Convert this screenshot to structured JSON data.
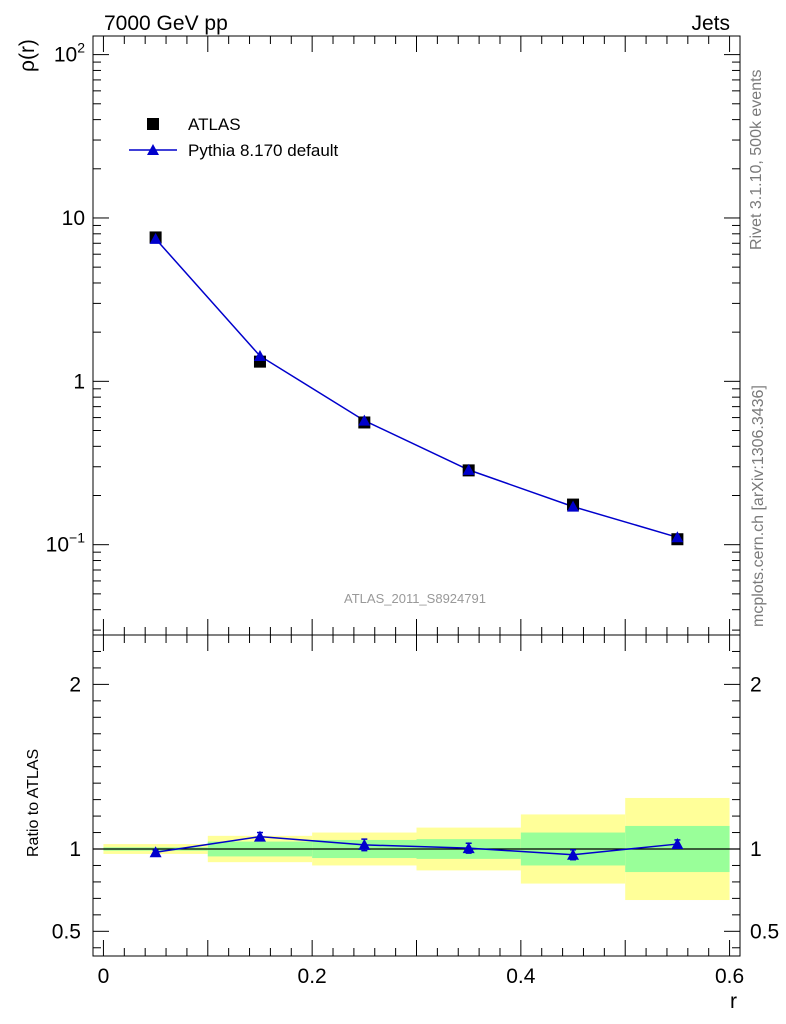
{
  "header": {
    "left": "7000 GeV pp",
    "right": "Jets"
  },
  "side_labels": {
    "rivet": "Rivet 3.1.10,  500k events",
    "source": "mcplots.cern.ch [arXiv:1306.3436]"
  },
  "analysis_tag": "ATLAS_2011_S8924791",
  "chart_data": [
    {
      "type": "scatter",
      "ylabel": "ρ(r)",
      "xlabel": "",
      "yscale": "log",
      "xlim": [
        -0.01,
        0.61
      ],
      "ylim": [
        0.028,
        130
      ],
      "ytick_labels": [
        {
          "value": 0.1,
          "label": "10",
          "sup": "−1"
        },
        {
          "value": 1,
          "label": "1",
          "sup": ""
        },
        {
          "value": 10,
          "label": "10",
          "sup": ""
        },
        {
          "value": 100,
          "label": "10",
          "sup": "2"
        }
      ],
      "legend_position": "top-left",
      "series": [
        {
          "name": "ATLAS",
          "style": "square-marker",
          "color": "#000000",
          "x": [
            0.05,
            0.15,
            0.25,
            0.35,
            0.45,
            0.55
          ],
          "y": [
            7.6,
            1.32,
            0.56,
            0.285,
            0.176,
            0.108
          ]
        },
        {
          "name": "Pythia 8.170 default",
          "style": "line-triangle",
          "color": "#0000cc",
          "x": [
            0.05,
            0.15,
            0.25,
            0.35,
            0.45,
            0.55
          ],
          "y": [
            7.45,
            1.43,
            0.575,
            0.287,
            0.171,
            0.111
          ]
        }
      ]
    },
    {
      "type": "line",
      "ylabel": "Ratio to ATLAS",
      "xlabel": "r",
      "xlim": [
        -0.01,
        0.61
      ],
      "ylim": [
        0.35,
        2.3
      ],
      "x_ticks": [
        0,
        0.2,
        0.4,
        0.6
      ],
      "x_tick_labels": [
        "0",
        "0.2",
        "0.4",
        "0.6"
      ],
      "y_ticks": [
        0.5,
        1,
        2
      ],
      "y_tick_labels": [
        "0.5",
        "1",
        "2"
      ],
      "reference_line": 1,
      "bands": {
        "bin_edges": [
          0,
          0.1,
          0.2,
          0.3,
          0.4,
          0.5,
          0.6
        ],
        "stat_color": "#99ff99",
        "total_color": "#ffff99",
        "stat": [
          [
            0.99,
            1.01
          ],
          [
            0.955,
            1.045
          ],
          [
            0.945,
            1.055
          ],
          [
            0.94,
            1.06
          ],
          [
            0.9,
            1.1
          ],
          [
            0.86,
            1.14
          ]
        ],
        "total": [
          [
            0.97,
            1.03
          ],
          [
            0.92,
            1.08
          ],
          [
            0.9,
            1.1
          ],
          [
            0.87,
            1.13
          ],
          [
            0.79,
            1.21
          ],
          [
            0.69,
            1.31
          ]
        ]
      },
      "series": [
        {
          "name": "Pythia 8.170 default",
          "color": "#0000cc",
          "x": [
            0.05,
            0.15,
            0.25,
            0.35,
            0.45,
            0.55
          ],
          "y": [
            0.98,
            1.075,
            1.025,
            1.005,
            0.965,
            1.03
          ],
          "err": [
            0.012,
            0.025,
            0.035,
            0.03,
            0.03,
            0.025
          ]
        }
      ]
    }
  ]
}
